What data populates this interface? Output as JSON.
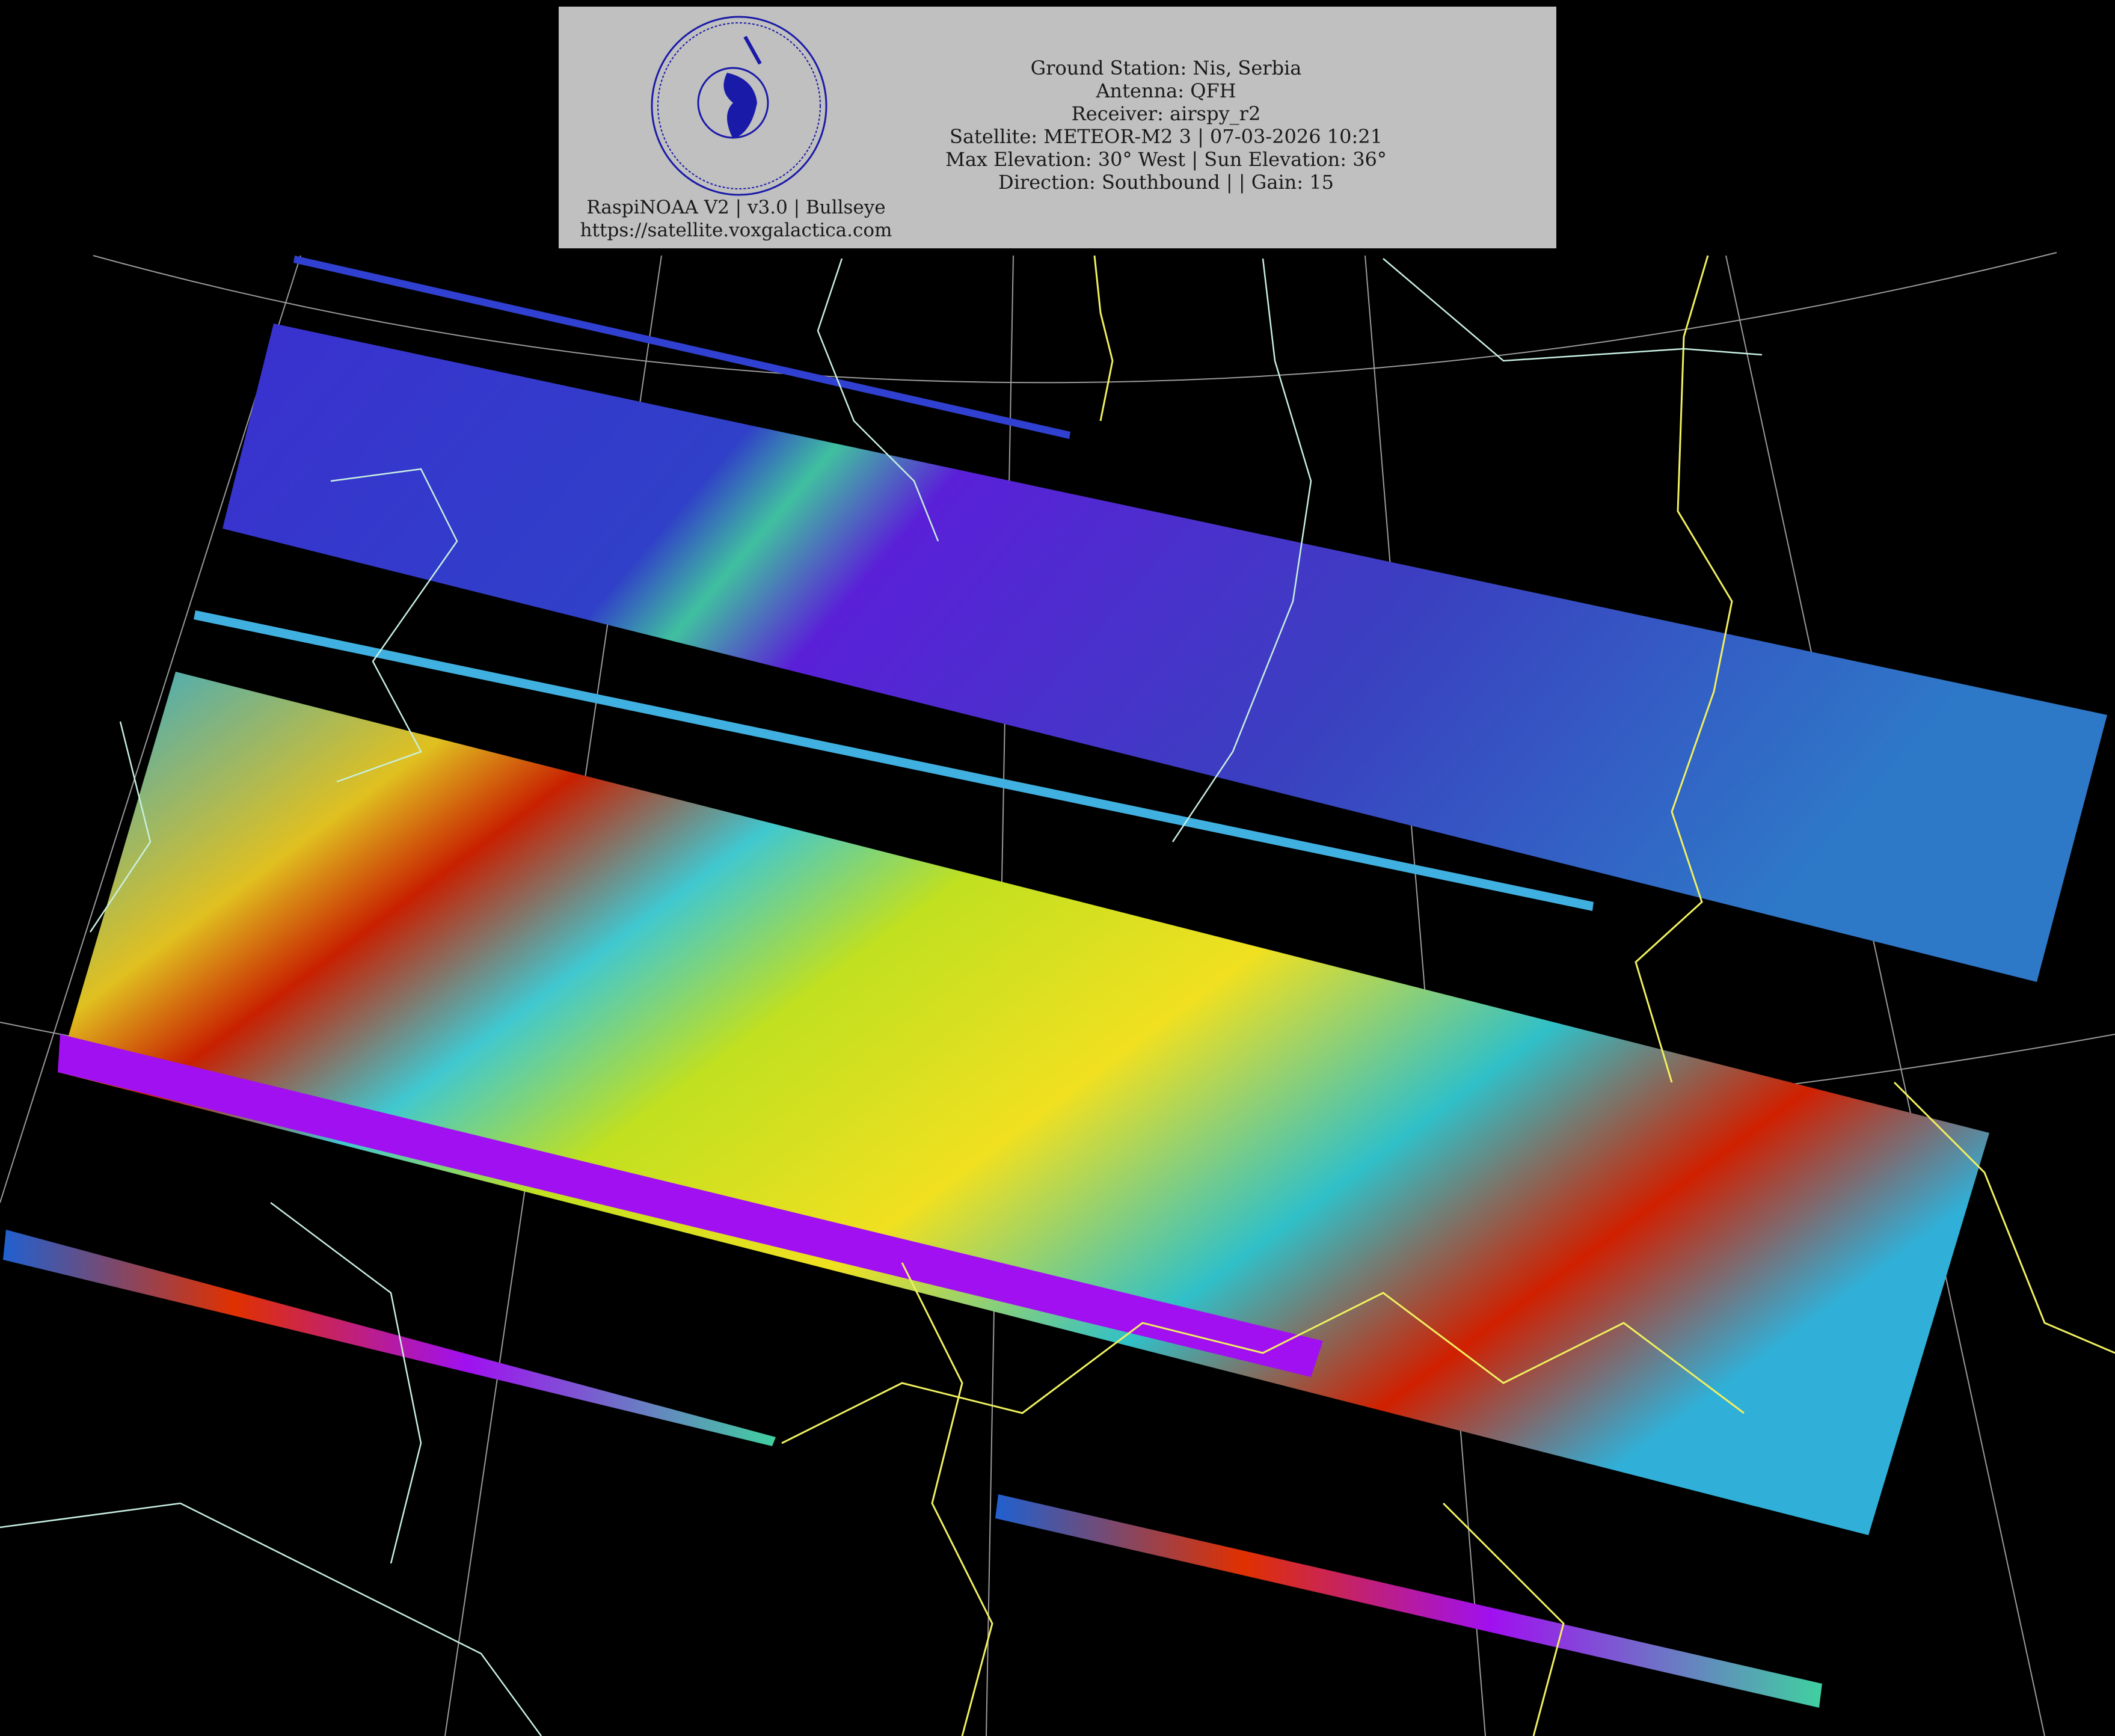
{
  "header": {
    "logo_text": "Mihajlo's Satellite Receiver · SAPERE AUDE · voxgalactica.com",
    "software": "RaspiNOAA V2 | v3.0 | Bullseye",
    "website": "https://satellite.voxgalactica.com",
    "info_lines": [
      "Ground Station: Nis, Serbia",
      "Antenna: QFH",
      "Receiver: airspy_r2",
      "Satellite: METEOR-M2 3 | 07-03-2026 10:21",
      "Max Elevation: 30° West | Sun Elevation: 36°",
      "Direction: Southbound | | Gain: 15"
    ]
  },
  "colors": {
    "background": "#000000",
    "header_bg": "#c0c0c0",
    "logo": "#1a1aa8",
    "borders": "#f0f060",
    "coastlines": "#c8f0e0",
    "graticule": "#a0a0a0"
  }
}
